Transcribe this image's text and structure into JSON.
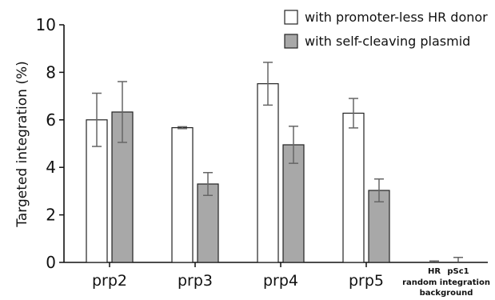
{
  "chart_data": {
    "type": "bar",
    "ylabel": "Targeted integration (%)",
    "ylim": [
      0,
      10
    ],
    "yticks": [
      0,
      2,
      4,
      6,
      8,
      10
    ],
    "grid": false,
    "legend_position": "top-right",
    "categories": [
      "prp2",
      "prp3",
      "prp4",
      "prp5"
    ],
    "series": [
      {
        "name": "with promoter-less HR donor",
        "color": "#ffffff",
        "values": [
          6.0,
          5.67,
          7.52,
          6.28
        ],
        "errors": [
          1.12,
          0.04,
          0.9,
          0.62
        ]
      },
      {
        "name": "with self-cleaving plasmid",
        "color": "#a8a8a8",
        "values": [
          6.33,
          3.3,
          4.95,
          3.03
        ],
        "errors": [
          1.28,
          0.48,
          0.78,
          0.48
        ]
      }
    ],
    "background": {
      "labels": [
        "HR",
        "pSc1"
      ],
      "values": [
        0.02,
        0.03
      ],
      "errors": [
        0.04,
        0.18
      ],
      "caption_line1": "random integration",
      "caption_line2": "background"
    }
  }
}
